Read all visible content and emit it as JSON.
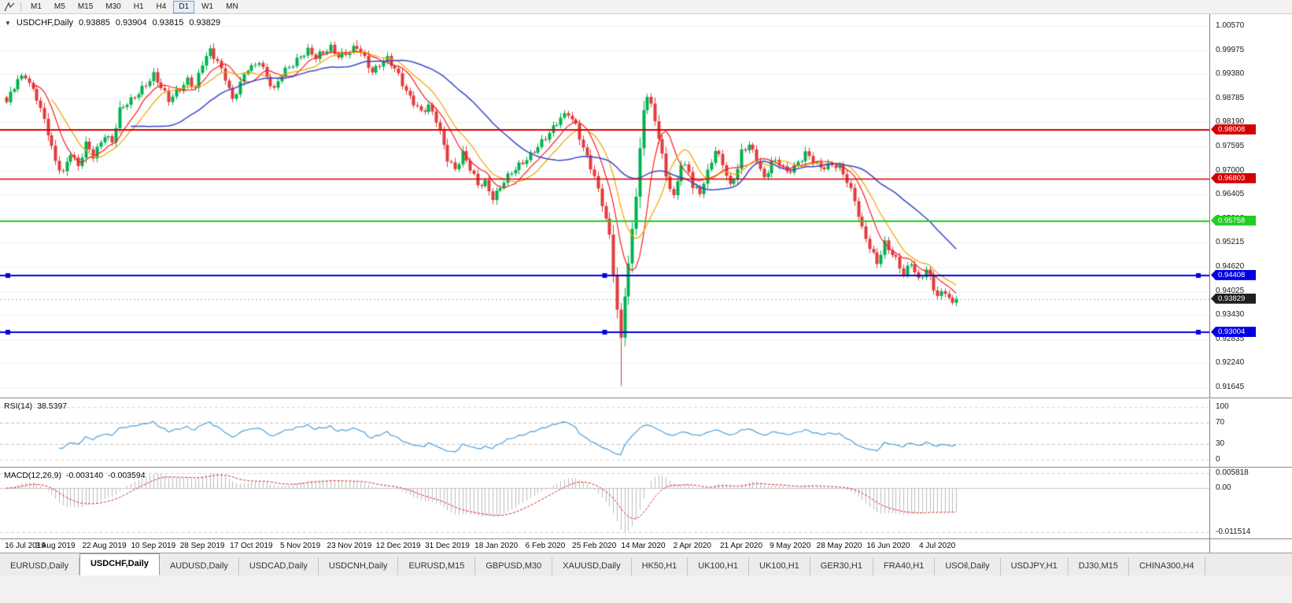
{
  "toolbar": {
    "timeframes": [
      "M1",
      "M5",
      "M15",
      "M30",
      "H1",
      "H4",
      "D1",
      "W1",
      "MN"
    ],
    "active": "D1"
  },
  "chart_header": {
    "collapse_glyph": "▼",
    "symbol_period": "USDCHF,Daily",
    "open": "0.93885",
    "high": "0.93904",
    "low": "0.93815",
    "close": "0.93829"
  },
  "tabs": {
    "active_index": 1,
    "items": [
      "EURUSD,Daily",
      "USDCHF,Daily",
      "AUDUSD,Daily",
      "USDCAD,Daily",
      "USDCNH,Daily",
      "EURUSD,M15",
      "GBPUSD,M30",
      "XAUUSD,Daily",
      "HK50,H1",
      "UK100,H1",
      "UK100,H1",
      "GER30,H1",
      "FRA40,H1",
      "USOil,Daily",
      "USDJPY,H1",
      "DJ30,M15",
      "CHINA300,H4"
    ]
  },
  "chart_data": {
    "type": "candlestick",
    "symbol": "USDCHF",
    "period": "Daily",
    "total_candles": 253,
    "candles_per_date_label": 13,
    "dates": [
      "16 Jul 2019",
      "3 Aug 2019",
      "22 Aug 2019",
      "10 Sep 2019",
      "28 Sep 2019",
      "17 Oct 2019",
      "5 Nov 2019",
      "23 Nov 2019",
      "12 Dec 2019",
      "31 Dec 2019",
      "18 Jan 2020",
      "6 Feb 2020",
      "25 Feb 2020",
      "14 Mar 2020",
      "2 Apr 2020",
      "21 Apr 2020",
      "9 May 2020",
      "28 May 2020",
      "16 Jun 2020",
      "4 Jul 2020"
    ],
    "price_axis_ticks": [
      "1.00570",
      "0.99975",
      "0.99380",
      "0.98785",
      "0.98190",
      "0.97595",
      "0.97000",
      "0.96405",
      "0.95810",
      "0.95215",
      "0.94620",
      "0.94025",
      "0.93430",
      "0.92835",
      "0.92240",
      "0.91645"
    ],
    "price_range": {
      "top": 1.00862,
      "bottom": 0.91393
    },
    "close_anchors": [
      [
        0,
        0.9865
      ],
      [
        3,
        0.9925
      ],
      [
        5,
        0.9938
      ],
      [
        8,
        0.988
      ],
      [
        11,
        0.979
      ],
      [
        13,
        0.972
      ],
      [
        15,
        0.9698
      ],
      [
        17,
        0.9748
      ],
      [
        19,
        0.9708
      ],
      [
        21,
        0.9762
      ],
      [
        23,
        0.9735
      ],
      [
        26,
        0.9792
      ],
      [
        28,
        0.9772
      ],
      [
        30,
        0.9846
      ],
      [
        33,
        0.9872
      ],
      [
        36,
        0.9906
      ],
      [
        39,
        0.9936
      ],
      [
        41,
        0.9902
      ],
      [
        43,
        0.9872
      ],
      [
        45,
        0.9896
      ],
      [
        48,
        0.9926
      ],
      [
        50,
        0.9902
      ],
      [
        52,
        0.9962
      ],
      [
        54,
        0.9996
      ],
      [
        56,
        0.9972
      ],
      [
        58,
        0.9932
      ],
      [
        60,
        0.9872
      ],
      [
        62,
        0.9912
      ],
      [
        64,
        0.9952
      ],
      [
        66,
        0.9962
      ],
      [
        67,
        0.9976
      ],
      [
        69,
        0.9932
      ],
      [
        71,
        0.9896
      ],
      [
        73,
        0.9936
      ],
      [
        75,
        0.9956
      ],
      [
        78,
        0.9986
      ],
      [
        80,
        0.9996
      ],
      [
        82,
        0.9976
      ],
      [
        84,
        0.999
      ],
      [
        86,
        1.0006
      ],
      [
        88,
        0.9986
      ],
      [
        91,
        0.9992
      ],
      [
        93,
        1.0002
      ],
      [
        95,
        0.9976
      ],
      [
        97,
        0.9946
      ],
      [
        99,
        0.9966
      ],
      [
        101,
        0.9976
      ],
      [
        104,
        0.9932
      ],
      [
        106,
        0.9896
      ],
      [
        108,
        0.9872
      ],
      [
        110,
        0.9846
      ],
      [
        112,
        0.9856
      ],
      [
        114,
        0.9822
      ],
      [
        116,
        0.9762
      ],
      [
        117,
        0.9732
      ],
      [
        119,
        0.9706
      ],
      [
        121,
        0.9742
      ],
      [
        123,
        0.9702
      ],
      [
        125,
        0.9662
      ],
      [
        127,
        0.9672
      ],
      [
        129,
        0.9636
      ],
      [
        130,
        0.9646
      ],
      [
        132,
        0.9672
      ],
      [
        134,
        0.9692
      ],
      [
        136,
        0.9712
      ],
      [
        138,
        0.9732
      ],
      [
        140,
        0.9752
      ],
      [
        143,
        0.9778
      ],
      [
        145,
        0.9802
      ],
      [
        147,
        0.9832
      ],
      [
        149,
        0.9846
      ],
      [
        151,
        0.9812
      ],
      [
        153,
        0.9752
      ],
      [
        155,
        0.9706
      ],
      [
        156,
        0.9682
      ],
      [
        158,
        0.9622
      ],
      [
        160,
        0.9542
      ],
      [
        161,
        0.9452
      ],
      [
        162,
        0.9352
      ],
      [
        163,
        0.9282
      ],
      [
        164,
        0.9392
      ],
      [
        165,
        0.9462
      ],
      [
        166,
        0.9552
      ],
      [
        167,
        0.9642
      ],
      [
        168,
        0.9752
      ],
      [
        169,
        0.9852
      ],
      [
        170,
        0.9892
      ],
      [
        171,
        0.9862
      ],
      [
        173,
        0.9782
      ],
      [
        175,
        0.9682
      ],
      [
        177,
        0.9632
      ],
      [
        179,
        0.9722
      ],
      [
        181,
        0.9702
      ],
      [
        182,
        0.9662
      ],
      [
        184,
        0.9642
      ],
      [
        186,
        0.9692
      ],
      [
        188,
        0.9752
      ],
      [
        190,
        0.9722
      ],
      [
        192,
        0.9662
      ],
      [
        194,
        0.9702
      ],
      [
        195,
        0.9742
      ],
      [
        197,
        0.9762
      ],
      [
        199,
        0.9732
      ],
      [
        201,
        0.9682
      ],
      [
        203,
        0.9722
      ],
      [
        205,
        0.9716
      ],
      [
        207,
        0.9692
      ],
      [
        208,
        0.9702
      ],
      [
        210,
        0.9722
      ],
      [
        212,
        0.9746
      ],
      [
        214,
        0.9722
      ],
      [
        216,
        0.9702
      ],
      [
        218,
        0.9712
      ],
      [
        220,
        0.9716
      ],
      [
        221,
        0.9712
      ],
      [
        223,
        0.9676
      ],
      [
        225,
        0.9622
      ],
      [
        227,
        0.9552
      ],
      [
        229,
        0.9512
      ],
      [
        231,
        0.9476
      ],
      [
        233,
        0.9522
      ],
      [
        234,
        0.9506
      ],
      [
        236,
        0.9476
      ],
      [
        238,
        0.9442
      ],
      [
        240,
        0.9476
      ],
      [
        242,
        0.9432
      ],
      [
        244,
        0.9456
      ],
      [
        246,
        0.9406
      ],
      [
        247,
        0.9386
      ],
      [
        249,
        0.9402
      ],
      [
        251,
        0.9372
      ],
      [
        252,
        0.93829
      ]
    ],
    "extremes": [
      {
        "i": 163,
        "low": 0.9168
      },
      {
        "i": 93,
        "high": 1.0022
      }
    ],
    "moving_averages": [
      {
        "period": 8,
        "color": "#ff1a1a"
      },
      {
        "period": 13,
        "color": "#eea500"
      },
      {
        "period": 34,
        "color": "#3946c8"
      }
    ],
    "hlines": [
      {
        "price": 0.98008,
        "label": "0.98008",
        "color": "#d40000",
        "width": 2,
        "handles": false
      },
      {
        "price": 0.96803,
        "label": "0.96803",
        "color": "#d40000",
        "width": 1.5,
        "handles": false
      },
      {
        "price": 0.95758,
        "label": "0.95758",
        "color": "#22cc22",
        "width": 2,
        "handles": false
      },
      {
        "price": 0.94408,
        "label": "0.94408",
        "color": "#0000e0",
        "width": 2,
        "handles": true
      },
      {
        "price": 0.93004,
        "label": "0.93004",
        "color": "#0000e0",
        "width": 2,
        "handles": true
      }
    ],
    "bid": {
      "price": 0.93829,
      "label": "0.93829",
      "color": "#1f1f1f"
    },
    "colors": {
      "up": "#00b14f",
      "down": "#e23b3b",
      "grid": "#f0f0f0",
      "background": "#ffffff"
    },
    "rsi": {
      "name": "RSI(14)",
      "value": "38.5397",
      "period": 14,
      "color": "#4d9fdb",
      "levels": [
        70,
        30
      ],
      "axis_values": [
        100,
        70,
        30,
        0
      ],
      "axis_labels": [
        "100",
        "70",
        "30",
        "0"
      ]
    },
    "macd": {
      "name": "MACD(12,26,9)",
      "fast": 12,
      "slow": 26,
      "signal": 9,
      "value_main": "-0.003140",
      "value_signal": "-0.003594",
      "axis_labels": [
        "0.005818",
        "0.00",
        "-0.011514"
      ],
      "histogram_color": "#bdbdbd",
      "signal_color": "#e02020"
    }
  }
}
